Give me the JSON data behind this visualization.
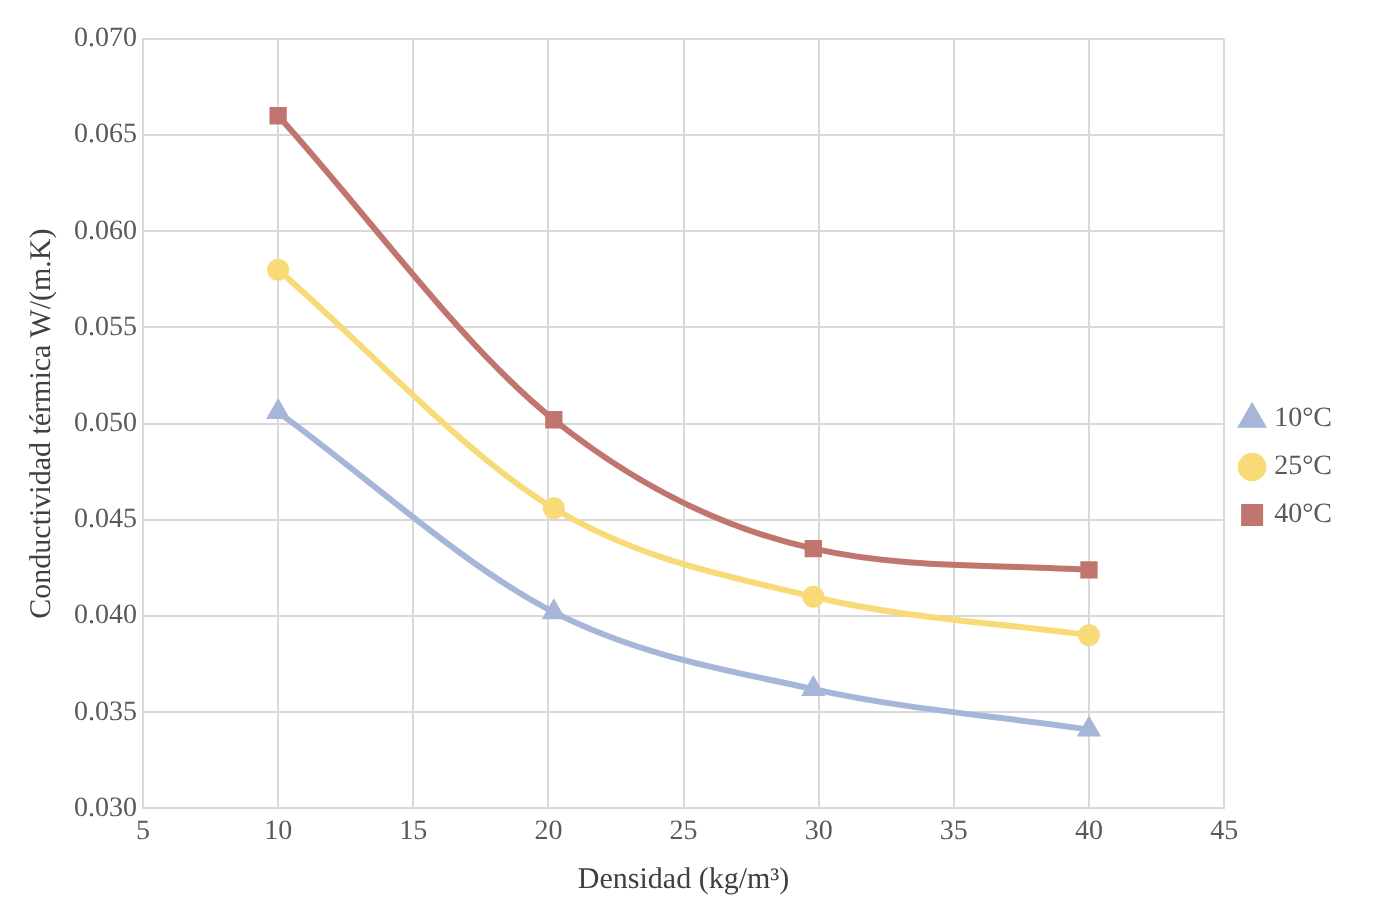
{
  "chart_data": {
    "type": "line",
    "xlabel": "Densidad (kg/m³)",
    "ylabel": "Conductividad térmica W/(m.K)",
    "x": [
      10,
      20.2,
      29.8,
      40
    ],
    "series": [
      {
        "name": "10°C",
        "color": "#a5b6d9",
        "marker": "triangle",
        "values": [
          0.0506,
          0.0402,
          0.0362,
          0.0341
        ]
      },
      {
        "name": "25°C",
        "color": "#f9da78",
        "marker": "circle",
        "values": [
          0.058,
          0.0456,
          0.041,
          0.039
        ]
      },
      {
        "name": "40°C",
        "color": "#c0766f",
        "marker": "square",
        "values": [
          0.066,
          0.0502,
          0.0435,
          0.0424
        ]
      }
    ],
    "xlim": [
      5,
      45
    ],
    "xticks": [
      5,
      10,
      15,
      20,
      25,
      30,
      35,
      40,
      45
    ],
    "ylim": [
      0.03,
      0.07
    ],
    "yticks": [
      {
        "value": 0.03,
        "label": "0.030"
      },
      {
        "value": 0.035,
        "label": "0.035"
      },
      {
        "value": 0.04,
        "label": "0.040"
      },
      {
        "value": 0.045,
        "label": "0.045"
      },
      {
        "value": 0.05,
        "label": "0.050"
      },
      {
        "value": 0.055,
        "label": "0.055"
      },
      {
        "value": 0.06,
        "label": "0.060"
      },
      {
        "value": 0.065,
        "label": "0.065"
      },
      {
        "value": 0.07,
        "label": "0.070"
      }
    ],
    "grid": true,
    "legend": "right",
    "line_style": "solid"
  }
}
